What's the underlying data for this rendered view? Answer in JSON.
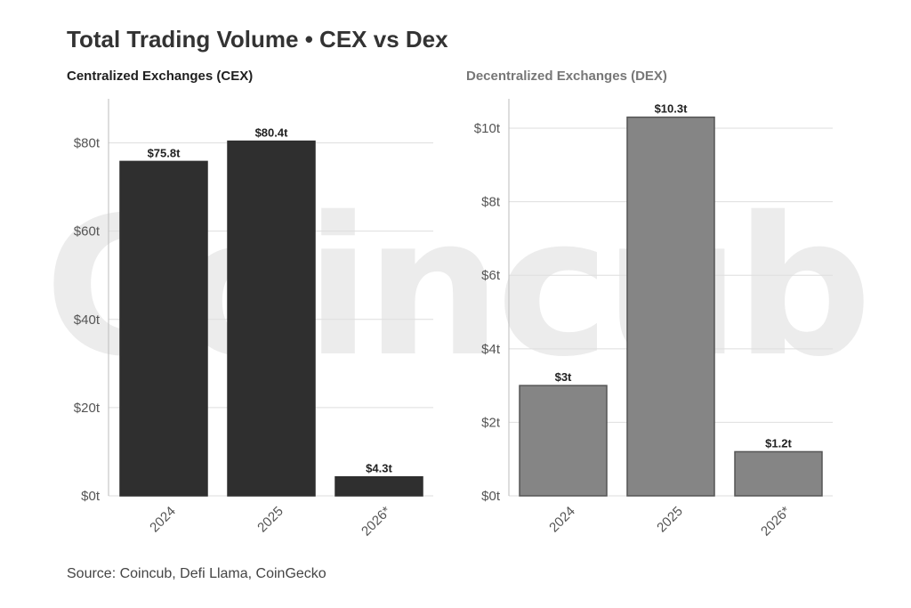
{
  "watermark": "Coincub",
  "title": "Total Trading Volume • CEX vs Dex",
  "source": "Source: Coincub, Defi Llama, CoinGecko",
  "colors": {
    "cex": "#2f2f2f",
    "dex": "#858585",
    "bar_stroke": "#555555"
  },
  "chart_data": [
    {
      "type": "bar",
      "title": "Centralized Exchanges (CEX)",
      "categories": [
        "2024",
        "2025",
        "2026*"
      ],
      "values": [
        75.8,
        80.4,
        4.3
      ],
      "value_labels": [
        "$75.8t",
        "$80.4t",
        "$4.3t"
      ],
      "ylim": [
        0,
        90
      ],
      "y_ticks": [
        0,
        20,
        40,
        60,
        80
      ],
      "y_tick_labels": [
        "$0t",
        "$20t",
        "$40t",
        "$60t",
        "$80t"
      ],
      "xlabel": "",
      "ylabel": "",
      "grid": true,
      "legend": "none"
    },
    {
      "type": "bar",
      "title": "Decentralized Exchanges (DEX)",
      "categories": [
        "2024",
        "2025",
        "2026*"
      ],
      "values": [
        3,
        10.3,
        1.2
      ],
      "value_labels": [
        "$3t",
        "$10.3t",
        "$1.2t"
      ],
      "ylim": [
        0,
        10.8
      ],
      "y_ticks": [
        0,
        2,
        4,
        6,
        8,
        10
      ],
      "y_tick_labels": [
        "$0t",
        "$2t",
        "$4t",
        "$6t",
        "$8t",
        "$10t"
      ],
      "xlabel": "",
      "ylabel": "",
      "grid": true,
      "legend": "none"
    }
  ]
}
